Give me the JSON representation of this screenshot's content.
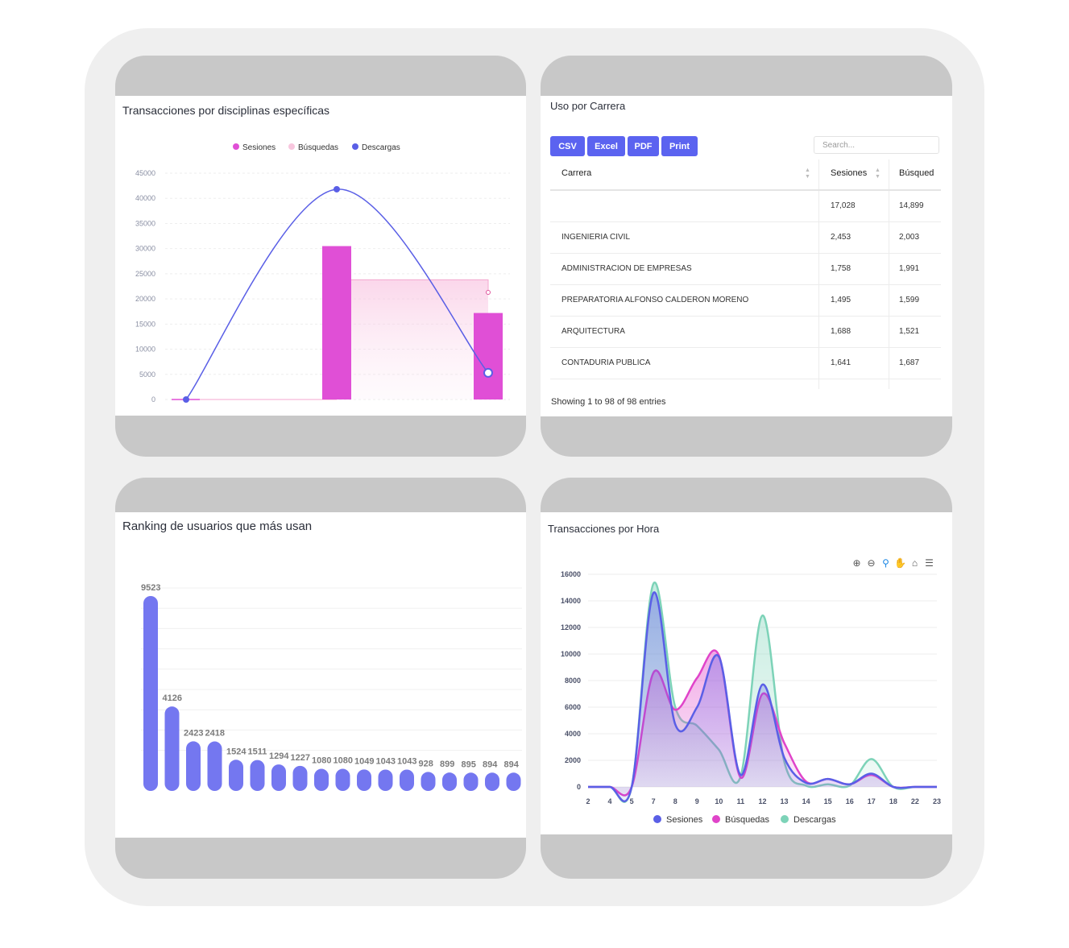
{
  "colors": {
    "sesiones": "#5a5fe6",
    "busquedas": "#e044c9",
    "descargas": "#7dd3b8",
    "bar_purple": "#e04fd6",
    "ranking": "#7477f0",
    "button": "#5b63f0"
  },
  "chart1": {
    "title": "Transacciones por disciplinas específicas",
    "legend": [
      "Sesiones",
      "Búsquedas",
      "Descargas"
    ],
    "yticks": [
      "45000",
      "40000",
      "35000",
      "30000",
      "25000",
      "20000",
      "15000",
      "10000",
      "5000",
      "0"
    ]
  },
  "table": {
    "title": "Uso por Carrera",
    "buttons": [
      "CSV",
      "Excel",
      "PDF",
      "Print"
    ],
    "search_placeholder": "Search...",
    "headers": [
      "Carrera",
      "Sesiones",
      "Búsqued"
    ],
    "rows": [
      [
        "",
        "17,028",
        "14,899"
      ],
      [
        "INGENIERIA CIVIL",
        "2,453",
        "2,003"
      ],
      [
        "ADMINISTRACION DE EMPRESAS",
        "1,758",
        "1,991"
      ],
      [
        "PREPARATORIA ALFONSO CALDERON MORENO",
        "1,495",
        "1,599"
      ],
      [
        "ARQUITECTURA",
        "1,688",
        "1,521"
      ],
      [
        "CONTADURIA PUBLICA",
        "1,641",
        "1,687"
      ]
    ],
    "footer": "Showing 1 to 98 of 98 entries"
  },
  "ranking": {
    "title": "Ranking de usuarios que más usan"
  },
  "hourly": {
    "title": "Transacciones por Hora",
    "toolbar": [
      "zoom-in-icon",
      "zoom-out-icon",
      "magnifier-icon",
      "pan-hand-icon",
      "home-icon",
      "menu-icon"
    ],
    "legend": [
      "Sesiones",
      "Búsquedas",
      "Descargas"
    ]
  },
  "chart_data": [
    {
      "type": "bar",
      "title": "Transacciones por disciplinas específicas",
      "ylim": [
        0,
        45000
      ],
      "grid": true,
      "legend_position": "top-center",
      "series": [
        {
          "name": "Sesiones",
          "type": "bar",
          "values": [
            0,
            30500,
            17200
          ]
        },
        {
          "name": "Búsquedas",
          "type": "area",
          "values": [
            0,
            23800,
            21300
          ]
        },
        {
          "name": "Descargas",
          "type": "line",
          "values": [
            0,
            41800,
            5300
          ]
        }
      ]
    },
    {
      "type": "bar",
      "title": "Ranking de usuarios que más usan",
      "values": [
        9523,
        4126,
        2423,
        2418,
        1524,
        1511,
        1294,
        1227,
        1080,
        1080,
        1049,
        1043,
        1043,
        928,
        899,
        895,
        894,
        894
      ],
      "labels": [
        "9523",
        "4126",
        "2423",
        "2418",
        "1524",
        "1511",
        "1294",
        "1227",
        "1080",
        "1080",
        "1049",
        "1043",
        "1043",
        "928",
        "899",
        "895",
        "894",
        "894"
      ],
      "ylim": [
        0,
        10000
      ],
      "grid": true
    },
    {
      "type": "area",
      "title": "Transacciones por Hora",
      "categories": [
        "2",
        "4",
        "5",
        "7",
        "8",
        "9",
        "10",
        "11",
        "12",
        "13",
        "14",
        "15",
        "16",
        "17",
        "18",
        "22",
        "23"
      ],
      "yticks": [
        "16000",
        "14000",
        "12000",
        "10000",
        "8000",
        "6000",
        "4000",
        "2000",
        "0"
      ],
      "ylim": [
        0,
        16000
      ],
      "legend_position": "bottom-center",
      "series": [
        {
          "name": "Sesiones",
          "values": [
            0,
            0,
            0,
            14600,
            4700,
            6000,
            9800,
            900,
            7700,
            2200,
            300,
            600,
            200,
            1000,
            0,
            0,
            0
          ]
        },
        {
          "name": "Búsquedas",
          "values": [
            0,
            0,
            0,
            8600,
            5800,
            8200,
            9900,
            700,
            7000,
            3300,
            400,
            600,
            200,
            900,
            0,
            0,
            0
          ]
        },
        {
          "name": "Descargas",
          "values": [
            0,
            0,
            0,
            15300,
            6000,
            4600,
            2800,
            800,
            12900,
            1900,
            100,
            200,
            100,
            2100,
            0,
            0,
            0
          ]
        }
      ]
    }
  ]
}
